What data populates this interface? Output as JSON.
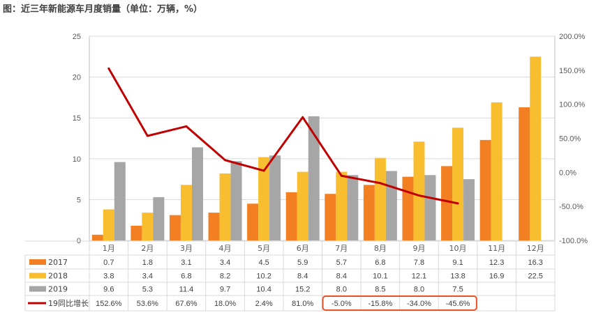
{
  "title": "图：近三年新能源车月度销量（单位：万辆，%）",
  "colors": {
    "s2017": "#F28023",
    "s2018": "#F9BE2F",
    "s2019": "#A6A6A6",
    "growth": "#C00000",
    "highlight": "#E8552A",
    "grid": "#D9D9D9",
    "axis": "#BFBFBF"
  },
  "chart_data": {
    "type": "bar",
    "title": "图：近三年新能源车月度销量（单位：万辆，%）",
    "categories": [
      "1月",
      "2月",
      "3月",
      "4月",
      "5月",
      "6月",
      "7月",
      "8月",
      "9月",
      "10月",
      "11月",
      "12月"
    ],
    "series": [
      {
        "name": "2017",
        "type": "bar",
        "axis": "left",
        "values": [
          0.7,
          1.8,
          3.1,
          3.4,
          4.5,
          5.9,
          5.7,
          6.8,
          7.8,
          9.1,
          12.3,
          16.3
        ],
        "labels": [
          "0.7",
          "1.8",
          "3.1",
          "3.4",
          "4.5",
          "5.9",
          "5.7",
          "6.8",
          "7.8",
          "9.1",
          "12.3",
          "16.3"
        ]
      },
      {
        "name": "2018",
        "type": "bar",
        "axis": "left",
        "values": [
          3.8,
          3.4,
          6.8,
          8.2,
          10.2,
          8.4,
          8.4,
          10.1,
          12.1,
          13.8,
          16.9,
          22.5
        ],
        "labels": [
          "3.8",
          "3.4",
          "6.8",
          "8.2",
          "10.2",
          "8.4",
          "8.4",
          "10.1",
          "12.1",
          "13.8",
          "16.9",
          "22.5"
        ]
      },
      {
        "name": "2019",
        "type": "bar",
        "axis": "left",
        "values": [
          9.6,
          5.3,
          11.4,
          9.7,
          10.4,
          15.2,
          8.0,
          8.5,
          8.0,
          7.5,
          null,
          null
        ],
        "labels": [
          "9.6",
          "5.3",
          "11.4",
          "9.7",
          "10.4",
          "15.2",
          "8.0",
          "8.5",
          "8.0",
          "7.5",
          "",
          ""
        ]
      },
      {
        "name": "19同比增长",
        "type": "line",
        "axis": "right",
        "values": [
          152.6,
          53.6,
          67.6,
          18.0,
          2.4,
          81.0,
          -5.0,
          -15.8,
          -34.0,
          -45.6,
          null,
          null
        ],
        "labels": [
          "152.6%",
          "53.6%",
          "67.6%",
          "18.0%",
          "2.4%",
          "81.0%",
          "-5.0%",
          "-15.8%",
          "-34.0%",
          "-45.6%",
          "",
          ""
        ]
      }
    ],
    "y_left": {
      "range": [
        0,
        25
      ],
      "ticks": [
        "0",
        "5",
        "10",
        "15",
        "20",
        "25"
      ],
      "tick_values": [
        0,
        5,
        10,
        15,
        20,
        25
      ]
    },
    "y_right": {
      "range": [
        -100,
        200
      ],
      "ticks": [
        "-100.0%",
        "-50.0%",
        "0.0%",
        "50.0%",
        "100.0%",
        "150.0%",
        "200.0%"
      ],
      "tick_values": [
        -100,
        -50,
        0,
        50,
        100,
        150,
        200
      ]
    },
    "grid": true,
    "legend": "data-table",
    "highlighted_months": [
      "7月",
      "8月",
      "9月",
      "10月"
    ]
  }
}
